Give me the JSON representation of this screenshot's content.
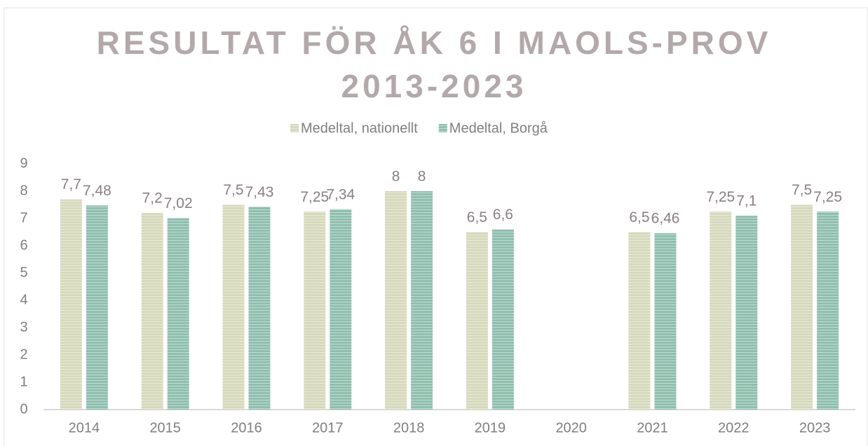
{
  "chart_data": {
    "type": "bar",
    "title": "RESULTAT FÖR ÅK 6 I MAOLS-PROV 2013-2023",
    "categories": [
      "2014",
      "2015",
      "2016",
      "2017",
      "2018",
      "2019",
      "2020",
      "2021",
      "2022",
      "2023"
    ],
    "series": [
      {
        "name": "Medeltal, nationellt",
        "color": "#d6d9bb",
        "values": [
          7.7,
          7.2,
          7.5,
          7.25,
          8,
          6.5,
          null,
          6.5,
          7.25,
          7.5
        ],
        "value_labels": [
          "7,7",
          "7,2",
          "7,5",
          "7,25",
          "8",
          "6,5",
          null,
          "6,5",
          "7,25",
          "7,5"
        ]
      },
      {
        "name": "Medeltal, Borgå",
        "color": "#8fbfae",
        "values": [
          7.48,
          7.02,
          7.43,
          7.34,
          8,
          6.6,
          null,
          6.46,
          7.1,
          7.25
        ],
        "value_labels": [
          "7,48",
          "7,02",
          "7,43",
          "7,34",
          "8",
          "6,6",
          null,
          "6,46",
          "7,1",
          "7,25"
        ]
      }
    ],
    "ylim": [
      0,
      9
    ],
    "yticks": [
      0,
      1,
      2,
      3,
      4,
      5,
      6,
      7,
      8,
      9
    ],
    "grid": false,
    "legend": "top"
  }
}
